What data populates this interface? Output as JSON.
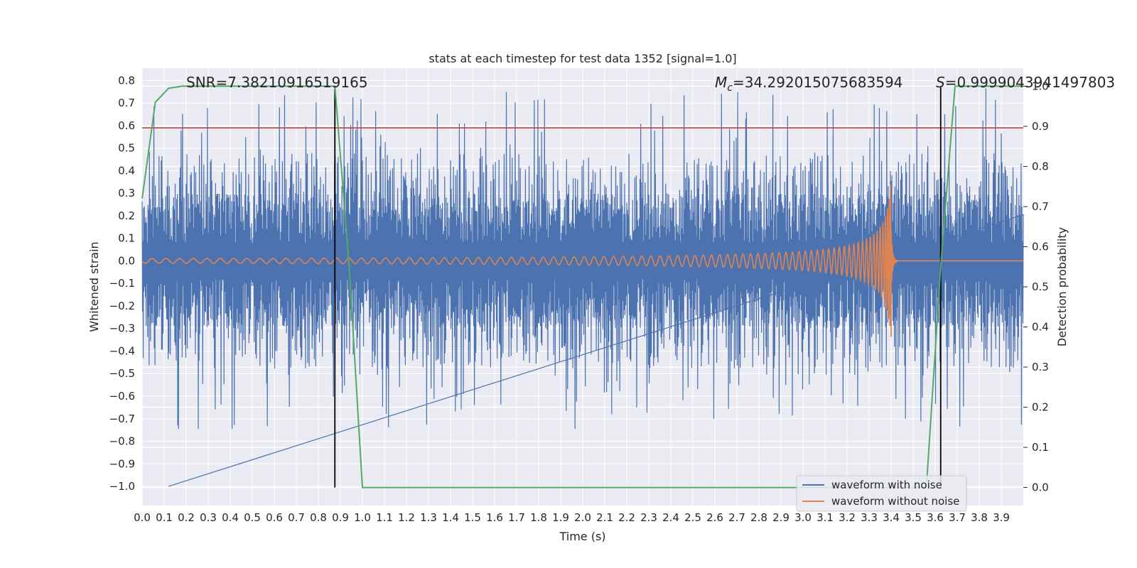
{
  "chart_data": {
    "type": "line",
    "title": "stats at each timestep for test data 1352 [signal=1.0]",
    "xlabel": "Time (s)",
    "ylabel": "Whitened strain",
    "y2label": "Detection probability",
    "xlim": [
      0.0,
      4.0
    ],
    "ylim": [
      -1.085,
      0.855
    ],
    "y2lim": [
      -0.045,
      1.045
    ],
    "x_ticks": [
      "0.0",
      "0.1",
      "0.2",
      "0.3",
      "0.4",
      "0.5",
      "0.6",
      "0.7",
      "0.8",
      "0.9",
      "1.0",
      "1.1",
      "1.2",
      "1.3",
      "1.4",
      "1.5",
      "1.6",
      "1.7",
      "1.8",
      "1.9",
      "2.0",
      "2.1",
      "2.2",
      "2.3",
      "2.4",
      "2.5",
      "2.6",
      "2.7",
      "2.8",
      "2.9",
      "3.0",
      "3.1",
      "3.2",
      "3.3",
      "3.4",
      "3.5",
      "3.6",
      "3.7",
      "3.8",
      "3.9"
    ],
    "y_ticks": [
      "0.8",
      "0.7",
      "0.6",
      "0.5",
      "0.4",
      "0.3",
      "0.2",
      "0.1",
      "0.0",
      "-0.1",
      "-0.2",
      "-0.3",
      "-0.4",
      "-0.5",
      "-0.6",
      "-0.7",
      "-0.8",
      "-0.9",
      "-1.0"
    ],
    "y2_ticks": [
      "1.0",
      "0.9",
      "0.8",
      "0.7",
      "0.6",
      "0.5",
      "0.4",
      "0.3",
      "0.2",
      "0.1",
      "0.0"
    ],
    "annotations": {
      "snr": "SNR=7.38210916519165",
      "mc_symbol": "M",
      "mc_sub": "c",
      "mc_value": "=34.292015075683594",
      "s_symbol": "S",
      "s_value": "=0.9999043941497803"
    },
    "threshold_y": 0.59,
    "vlines_x": [
      0.875,
      3.625
    ],
    "series": [
      {
        "name": "waveform with noise",
        "color": "#4c72b0",
        "axis": "left",
        "envelope_upper": 0.48,
        "envelope_lower": -0.42,
        "peak_max": 0.765,
        "peak_min": -1.0
      },
      {
        "name": "waveform without noise",
        "color": "#dd8452",
        "axis": "left",
        "merger_time": 3.4,
        "peak": 0.41
      },
      {
        "name": "detection probability",
        "color": "#55a868",
        "axis": "right",
        "x": [
          0.0,
          0.06,
          0.12,
          0.18,
          0.25,
          0.5,
          0.75,
          0.875,
          0.94,
          1.0,
          1.06,
          1.25,
          1.5,
          2.0,
          2.5,
          3.0,
          3.25,
          3.5,
          3.56,
          3.625,
          3.69,
          3.75,
          4.0
        ],
        "y": [
          0.72,
          0.96,
          0.995,
          1.0,
          1.0,
          1.0,
          1.0,
          1.0,
          0.55,
          0.0,
          0.0,
          0.0,
          0.0,
          0.0,
          0.0,
          0.0,
          0.0,
          0.0,
          0.0,
          0.55,
          1.0,
          1.0,
          1.0
        ]
      }
    ],
    "threshold_color": "#c44e52",
    "vline_color": "#000000",
    "legend": {
      "position": "lower-right",
      "entries": [
        "waveform with noise",
        "waveform without noise"
      ]
    }
  }
}
